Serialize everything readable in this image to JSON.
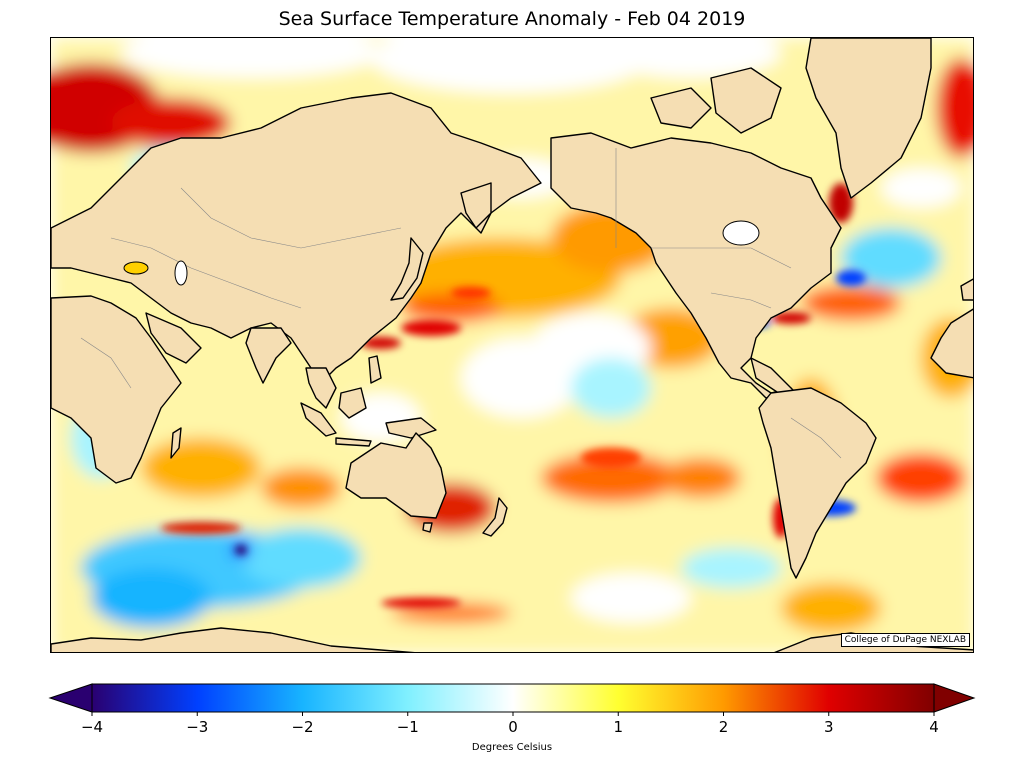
{
  "title": "Sea Surface Temperature Anomaly - Feb 04 2019",
  "credit": "College of DuPage NEXLAB",
  "colorbar": {
    "label": "Degrees Celsius",
    "min": -4,
    "max": 4,
    "ticks": [
      "−4",
      "−3",
      "−2",
      "−1",
      "0",
      "1",
      "2",
      "3",
      "4"
    ],
    "tick_values": [
      -4,
      -3,
      -2,
      -1,
      0,
      1,
      2,
      3,
      4
    ],
    "colors": [
      "#2a0070",
      "#0040ff",
      "#18b4ff",
      "#80f0ff",
      "#ffffff",
      "#ffff30",
      "#ff9a00",
      "#e00000",
      "#800000"
    ]
  },
  "colors": {
    "land": "#f5deb3",
    "coast": "#000000",
    "border": "#888888"
  }
}
